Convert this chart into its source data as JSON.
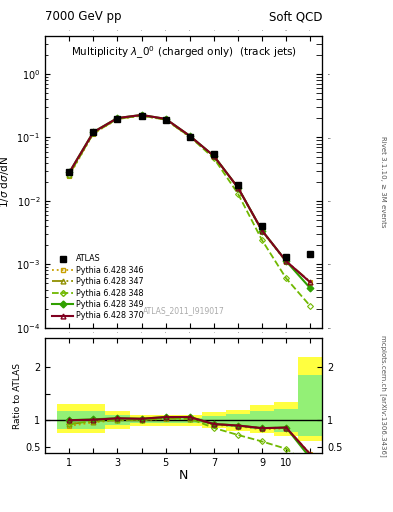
{
  "title_top_left": "7000 GeV pp",
  "title_top_right": "Soft QCD",
  "main_title": "Multiplicity $\\lambda\\_0^0$ (charged only)  (track jets)",
  "xlabel": "N",
  "ylabel_main": "1/$\\sigma$ d$\\sigma$/dN",
  "ylabel_ratio": "Ratio to ATLAS",
  "right_label_main": "Rivet 3.1.10, ≥ 3M events",
  "right_label_ratio": "mcplots.cern.ch [arXiv:1306.3436]",
  "watermark": "ATLAS_2011_I919017",
  "atlas_x": [
    1,
    2,
    3,
    4,
    5,
    6,
    7,
    8,
    9,
    10,
    11
  ],
  "atlas_y": [
    0.028,
    0.12,
    0.195,
    0.22,
    0.185,
    0.1,
    0.055,
    0.018,
    0.004,
    0.0013,
    0.00145
  ],
  "py346_y": [
    0.025,
    0.115,
    0.195,
    0.22,
    0.19,
    0.102,
    0.05,
    0.016,
    0.0033,
    0.0011,
    0.00052
  ],
  "py347_y": [
    0.026,
    0.117,
    0.196,
    0.221,
    0.191,
    0.103,
    0.051,
    0.0162,
    0.0034,
    0.00112,
    0.00053
  ],
  "py348_y": [
    0.026,
    0.118,
    0.197,
    0.222,
    0.192,
    0.103,
    0.047,
    0.013,
    0.0024,
    0.0006,
    0.00022
  ],
  "py349_y": [
    0.028,
    0.122,
    0.202,
    0.226,
    0.196,
    0.106,
    0.051,
    0.0162,
    0.0034,
    0.00112,
    0.00042
  ],
  "py370_y": [
    0.028,
    0.121,
    0.202,
    0.226,
    0.196,
    0.106,
    0.051,
    0.0162,
    0.0034,
    0.00112,
    0.00052
  ],
  "color_atlas": "#000000",
  "color_346": "#c8a000",
  "color_347": "#909000",
  "color_348": "#70b800",
  "color_349": "#30a000",
  "color_370": "#800020",
  "ylim_main_lo": 0.0001,
  "ylim_main_hi": 4.0,
  "xlim_lo": 0.0,
  "xlim_hi": 11.5,
  "ylim_ratio_lo": 0.38,
  "ylim_ratio_hi": 2.55,
  "band_x_edges": [
    0.5,
    1.5,
    2.5,
    3.5,
    4.5,
    5.5,
    6.5,
    7.5,
    8.5,
    9.5,
    10.5,
    11.5
  ],
  "band_yellow_lo": [
    0.75,
    0.75,
    0.84,
    0.9,
    0.9,
    0.9,
    0.85,
    0.8,
    0.75,
    0.7,
    0.6
  ],
  "band_yellow_hi": [
    1.3,
    1.3,
    1.18,
    1.1,
    1.1,
    1.1,
    1.15,
    1.2,
    1.28,
    1.35,
    2.2
  ],
  "band_green_lo": [
    0.84,
    0.84,
    0.91,
    0.95,
    0.95,
    0.95,
    0.92,
    0.88,
    0.83,
    0.78,
    0.7
  ],
  "band_green_hi": [
    1.18,
    1.18,
    1.09,
    1.05,
    1.05,
    1.05,
    1.08,
    1.12,
    1.17,
    1.22,
    1.85
  ]
}
